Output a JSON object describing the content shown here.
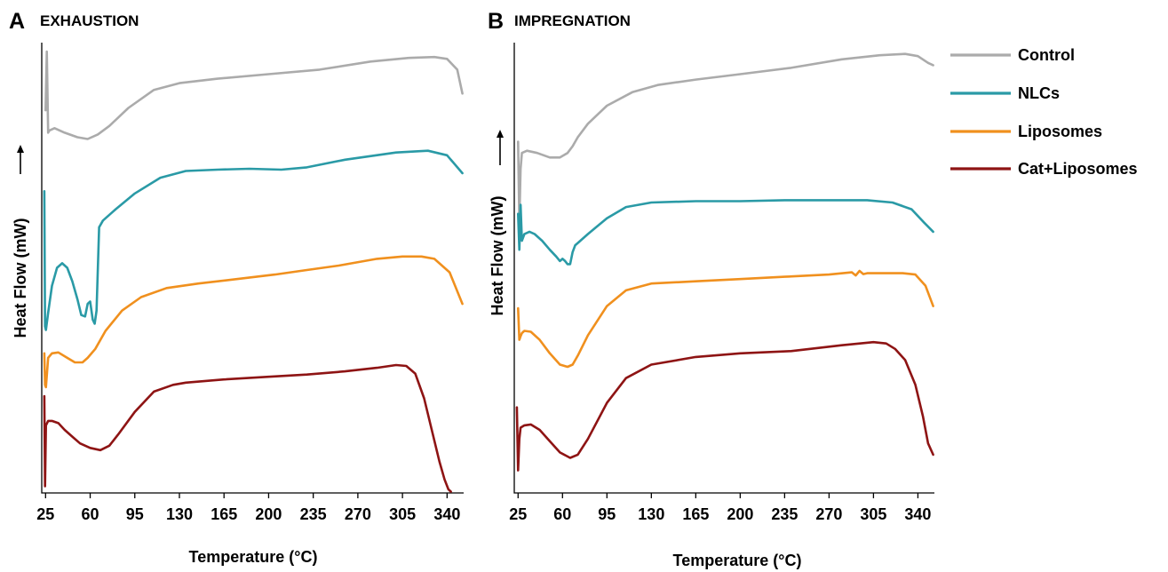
{
  "legend": [
    {
      "name": "Control",
      "color": "#ababab"
    },
    {
      "name": "NLCs",
      "color": "#2a9aa6"
    },
    {
      "name": "Liposomes",
      "color": "#f0901e"
    },
    {
      "name": "Cat+Liposomes",
      "color": "#8e1414"
    }
  ],
  "chart_data": [
    {
      "type": "line",
      "panel": "A",
      "title": "EXHAUSTION",
      "xlabel": "Temperature (°C)",
      "ylabel": "Heat Flow (mW)",
      "ylabel_arrow": "up",
      "xticks": [
        25,
        60,
        95,
        130,
        165,
        200,
        235,
        270,
        305,
        340
      ],
      "xlim": [
        22,
        353
      ],
      "ylim": [
        0,
        100
      ],
      "y_ticks_shown": false,
      "grid": false,
      "legend": "right",
      "series": [
        {
          "name": "Control",
          "color": "#ababab",
          "x": [
            25,
            26,
            27,
            28,
            32,
            40,
            50,
            58,
            66,
            75,
            90,
            110,
            130,
            160,
            200,
            240,
            280,
            310,
            330,
            340,
            348,
            352
          ],
          "y": [
            85.0,
            98.0,
            80.0,
            80.5,
            81.0,
            80.0,
            79.0,
            78.6,
            79.6,
            81.5,
            85.5,
            89.5,
            91.0,
            92.0,
            93.0,
            94.0,
            95.8,
            96.6,
            96.8,
            96.4,
            94.0,
            88.7
          ]
        },
        {
          "name": "NLCs",
          "color": "#2a9aa6",
          "x": [
            24,
            24.6,
            25.3,
            27,
            30,
            34,
            38,
            42,
            46,
            50,
            53,
            56,
            58,
            60,
            62,
            63.5,
            65,
            67,
            70,
            80,
            95,
            115,
            135,
            160,
            185,
            210,
            230,
            260,
            300,
            325,
            340,
            352
          ],
          "y": [
            67.0,
            37.0,
            36.2,
            40.0,
            46.0,
            50.0,
            51.0,
            50.0,
            47.0,
            43.0,
            39.5,
            39.2,
            42.0,
            42.5,
            38.5,
            37.6,
            40.5,
            59.0,
            60.5,
            63.0,
            66.5,
            70.0,
            71.5,
            71.8,
            72.0,
            71.8,
            72.3,
            74.0,
            75.6,
            76.0,
            75.0,
            71.0
          ]
        },
        {
          "name": "Liposomes",
          "color": "#f0901e",
          "x": [
            24,
            24.6,
            25.3,
            27,
            30,
            35,
            42,
            48,
            54,
            58,
            64,
            72,
            85,
            100,
            120,
            145,
            175,
            205,
            230,
            255,
            285,
            305,
            320,
            330,
            342,
            352
          ],
          "y": [
            31.0,
            24.0,
            23.5,
            30.0,
            31.0,
            31.2,
            30.0,
            29.0,
            29.0,
            30.0,
            32.0,
            36.0,
            40.5,
            43.5,
            45.5,
            46.5,
            47.5,
            48.5,
            49.5,
            50.5,
            52.0,
            52.5,
            52.5,
            52.0,
            49.0,
            42.0
          ]
        },
        {
          "name": "Cat+Liposomes",
          "color": "#8e1414",
          "x": [
            24,
            24.6,
            25.3,
            27,
            30,
            35,
            40,
            46,
            52,
            60,
            68,
            75,
            82,
            95,
            110,
            125,
            135,
            165,
            200,
            230,
            260,
            285,
            300,
            308,
            315,
            322,
            328,
            334,
            338,
            341,
            343
          ],
          "y": [
            21.5,
            1.5,
            15.0,
            16.0,
            16.0,
            15.5,
            14.0,
            12.5,
            11.0,
            10.0,
            9.5,
            10.5,
            13.0,
            18.0,
            22.5,
            24.0,
            24.5,
            25.2,
            25.8,
            26.3,
            27.0,
            27.8,
            28.4,
            28.2,
            26.5,
            21.0,
            14.0,
            7.0,
            3.0,
            0.8,
            0.3
          ]
        }
      ]
    },
    {
      "type": "line",
      "panel": "B",
      "title": "IMPREGNATION",
      "xlabel": "Temperature (°C)",
      "ylabel": "Heat Flow (mW)",
      "ylabel_arrow": "up",
      "xticks": [
        25,
        60,
        95,
        130,
        165,
        200,
        235,
        270,
        305,
        340
      ],
      "xlim": [
        22,
        353
      ],
      "ylim": [
        0,
        100
      ],
      "y_ticks_shown": false,
      "grid": false,
      "legend": "right",
      "series": [
        {
          "name": "Control",
          "color": "#ababab",
          "x": [
            25,
            26,
            27,
            28,
            32,
            40,
            50,
            58,
            64,
            68,
            72,
            80,
            95,
            115,
            135,
            165,
            200,
            240,
            280,
            310,
            330,
            340,
            348,
            352
          ],
          "y": [
            78.0,
            60.0,
            72.0,
            75.5,
            76.0,
            75.5,
            74.5,
            74.5,
            75.5,
            77.0,
            79.0,
            82.0,
            86.0,
            89.0,
            90.6,
            91.8,
            93.0,
            94.4,
            96.3,
            97.2,
            97.5,
            97.0,
            95.5,
            95.0
          ]
        },
        {
          "name": "NLCs",
          "color": "#2a9aa6",
          "x": [
            25,
            26,
            27,
            28,
            30,
            34,
            38,
            44,
            50,
            55,
            58,
            60,
            62,
            64,
            66,
            68,
            70,
            72,
            80,
            95,
            110,
            130,
            165,
            200,
            235,
            270,
            300,
            320,
            335,
            345,
            352
          ],
          "y": [
            62.0,
            54.0,
            64.0,
            56.0,
            57.5,
            58.0,
            57.5,
            56.0,
            54.0,
            52.5,
            51.5,
            52.0,
            51.5,
            50.8,
            50.8,
            53.5,
            55.0,
            55.5,
            57.5,
            61.0,
            63.5,
            64.5,
            64.8,
            64.8,
            65.0,
            65.0,
            65.0,
            64.5,
            63.0,
            60.0,
            58.0
          ]
        },
        {
          "name": "Liposomes",
          "color": "#f0901e",
          "x": [
            25,
            26,
            27,
            28,
            30,
            35,
            42,
            50,
            58,
            64,
            68,
            72,
            80,
            95,
            110,
            130,
            165,
            200,
            235,
            270,
            288,
            291,
            294,
            297,
            300,
            315,
            328,
            338,
            346,
            352
          ],
          "y": [
            41.0,
            34.0,
            34.8,
            35.5,
            36.0,
            35.8,
            34.0,
            31.0,
            28.5,
            28.0,
            28.5,
            30.5,
            35.0,
            41.5,
            45.0,
            46.5,
            47.0,
            47.5,
            48.0,
            48.5,
            49.0,
            48.3,
            49.3,
            48.6,
            48.8,
            48.8,
            48.8,
            48.5,
            46.0,
            41.5
          ]
        },
        {
          "name": "Cat+Liposomes",
          "color": "#8e1414",
          "x": [
            24,
            25,
            26,
            27,
            30,
            35,
            42,
            50,
            58,
            66,
            72,
            80,
            95,
            110,
            130,
            165,
            200,
            240,
            280,
            305,
            315,
            322,
            330,
            338,
            344,
            348,
            352
          ],
          "y": [
            19.0,
            5.0,
            12.0,
            14.5,
            15.0,
            15.2,
            14.0,
            11.5,
            9.0,
            7.8,
            8.5,
            12.0,
            20.0,
            25.5,
            28.5,
            30.2,
            31.0,
            31.5,
            32.8,
            33.5,
            33.2,
            32.0,
            29.5,
            24.0,
            17.0,
            11.0,
            8.5
          ]
        }
      ]
    }
  ]
}
